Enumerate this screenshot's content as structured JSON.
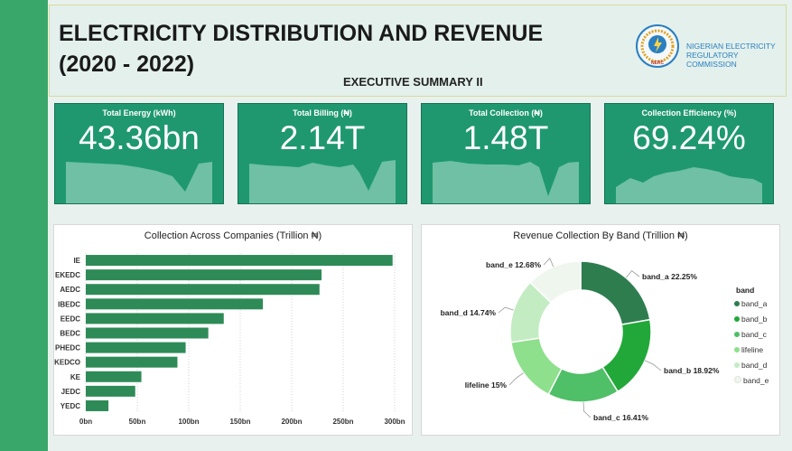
{
  "header": {
    "title_line1": "ELECTRICITY DISTRIBUTION AND REVENUE",
    "title_line2": "(2020 - 2022)",
    "subtitle": "EXECUTIVE SUMMARY II",
    "org_line1": "NIGERIAN ELECTRICITY",
    "org_line2": "REGULATORY COMMISSION",
    "logo_text": "NERC"
  },
  "cards": [
    {
      "title": "Total Energy (kWh)",
      "value": "43.36bn"
    },
    {
      "title": "Total Billing (₦)",
      "value": "2.14T"
    },
    {
      "title": "Total Collection (₦)",
      "value": "1.48T"
    },
    {
      "title": "Collection Efficiency (%)",
      "value": "69.24%"
    }
  ],
  "colors": {
    "sidebar": "#3aa76a",
    "card_bg": "#1f9870",
    "sparkline": "#6fc0a4",
    "bar": "#2e8b57",
    "band_a": "#2e7d4f",
    "band_b": "#22a839",
    "band_c": "#4fbf68",
    "lifeline": "#8ee08c",
    "band_d": "#c3ecc2",
    "band_e": "#eef6ee"
  },
  "chart_data": [
    {
      "type": "bar",
      "orientation": "horizontal",
      "title": "Collection Across Companies (Trillion ₦)",
      "categories": [
        "IE",
        "EKEDC",
        "AEDC",
        "IBEDC",
        "EEDC",
        "BEDC",
        "PHEDC",
        "KEDCO",
        "KE",
        "JEDC",
        "YEDC"
      ],
      "values": [
        298,
        229,
        227,
        172,
        134,
        119,
        97,
        89,
        54,
        48,
        22
      ],
      "xlim": [
        0,
        300
      ],
      "xticks": [
        "0bn",
        "50bn",
        "100bn",
        "150bn",
        "200bn",
        "250bn",
        "300bn"
      ],
      "grid": true
    },
    {
      "type": "pie",
      "donut": true,
      "title": "Revenue Collection By Band (Trillion ₦)",
      "legend_title": "band",
      "legend_position": "right",
      "slices": [
        {
          "name": "band_a",
          "value": 22.25,
          "label": "band_a 22.25%"
        },
        {
          "name": "band_b",
          "value": 18.92,
          "label": "band_b 18.92%"
        },
        {
          "name": "band_c",
          "value": 16.41,
          "label": "band_c 16.41%"
        },
        {
          "name": "lifeline",
          "value": 15.0,
          "label": "lifeline 15%"
        },
        {
          "name": "band_d",
          "value": 14.74,
          "label": "band_d 14.74%"
        },
        {
          "name": "band_e",
          "value": 12.68,
          "label": "band_e 12.68%"
        }
      ]
    }
  ]
}
